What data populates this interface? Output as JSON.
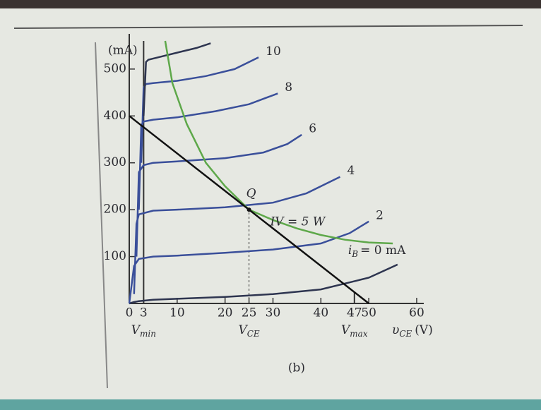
{
  "chart_data": {
    "type": "line",
    "y_label": "(mA)",
    "x_label": {
      "symbol": "υ",
      "sub": "CE",
      "unit": "(V)"
    },
    "caption": "(b)",
    "xlim": [
      0,
      60
    ],
    "xticks": [
      0,
      3,
      10,
      20,
      25,
      30,
      40,
      47,
      50,
      60
    ],
    "ylim": [
      0,
      560
    ],
    "yticks": [
      100,
      200,
      300,
      400,
      500
    ],
    "series": [
      {
        "name": "= 0 mA",
        "name_prefix": {
          "symbol": "i",
          "sub": "B"
        },
        "color": "#2e3550",
        "x": [
          0,
          1,
          2,
          5,
          10,
          20,
          30,
          40,
          50,
          56
        ],
        "values": [
          0,
          3,
          5,
          8,
          10,
          14,
          20,
          30,
          55,
          83
        ]
      },
      {
        "name": "2",
        "color": "#3a4f9a",
        "x": [
          0,
          1,
          2,
          5,
          10,
          20,
          30,
          40,
          46,
          50
        ],
        "values": [
          0,
          80,
          95,
          100,
          102,
          108,
          115,
          128,
          150,
          175
        ]
      },
      {
        "name": "4",
        "color": "#3a4f9a",
        "x": [
          1,
          1.5,
          2,
          5,
          10,
          20,
          30,
          37,
          44
        ],
        "values": [
          20,
          170,
          190,
          198,
          200,
          205,
          215,
          235,
          270
        ]
      },
      {
        "name": "6",
        "color": "#3a4f9a",
        "x": [
          1.5,
          2,
          3,
          5,
          10,
          20,
          28,
          33,
          36
        ],
        "values": [
          100,
          280,
          295,
          300,
          303,
          310,
          322,
          340,
          360
        ]
      },
      {
        "name": "8",
        "color": "#3a4f9a",
        "x": [
          2,
          2.5,
          3,
          5,
          10,
          18,
          25,
          31
        ],
        "values": [
          200,
          380,
          388,
          392,
          397,
          410,
          425,
          448
        ]
      },
      {
        "name": "10",
        "color": "#3a4f9a",
        "x": [
          2.5,
          3,
          3.5,
          5,
          10,
          16,
          22,
          27
        ],
        "values": [
          300,
          460,
          468,
          470,
          475,
          485,
          500,
          525
        ]
      },
      {
        "color": "#2e3550",
        "x": [
          3,
          3.5,
          4,
          6,
          10,
          14,
          17
        ],
        "values": [
          400,
          515,
          520,
          525,
          535,
          545,
          555
        ]
      },
      {
        "name": "IV = 5 W",
        "color": "#5ea84a",
        "x": [
          7.5,
          9,
          12,
          16,
          20,
          25,
          30,
          35,
          40,
          45,
          50,
          55
        ],
        "values": [
          560,
          470,
          383,
          300,
          250,
          200,
          178,
          160,
          146,
          136,
          130,
          128
        ]
      }
    ],
    "load_line": {
      "x": [
        0,
        50
      ],
      "values": [
        400,
        0
      ]
    },
    "point": {
      "label": "Q",
      "x": 25,
      "y": 200
    },
    "x_markers": [
      {
        "x": 3,
        "symbol": "V",
        "sub": "min"
      },
      {
        "x": 25,
        "symbol": "V",
        "sub": "CE"
      },
      {
        "x": 47,
        "symbol": "V",
        "sub": "max"
      }
    ]
  }
}
